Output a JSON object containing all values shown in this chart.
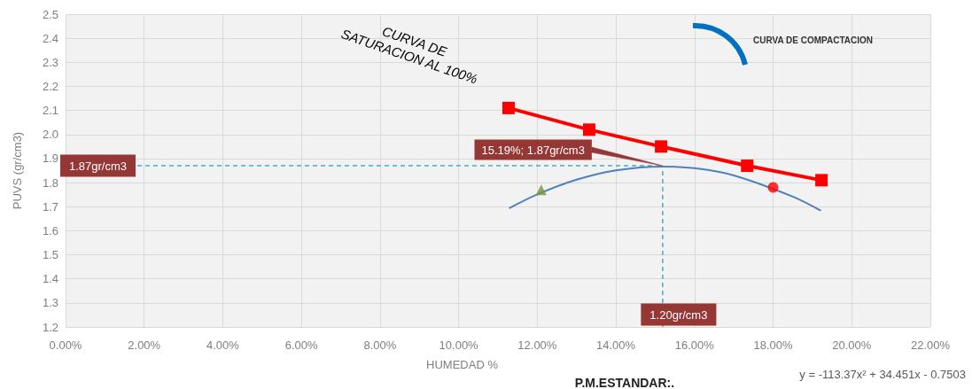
{
  "chart_data": {
    "type": "line",
    "xlabel": "HUMEDAD %",
    "ylabel": "PUVS (gr/cm3)",
    "xlim": [
      0,
      0.22
    ],
    "xticks": [
      {
        "value": 0,
        "label": "0.00%"
      },
      {
        "value": 0.02,
        "label": "2.00%"
      },
      {
        "value": 0.04,
        "label": "4.00%"
      },
      {
        "value": 0.06,
        "label": "6.00%"
      },
      {
        "value": 0.08,
        "label": "8.00%"
      },
      {
        "value": 0.1,
        "label": "10.00%"
      },
      {
        "value": 0.12,
        "label": "12.00%"
      },
      {
        "value": 0.14,
        "label": "14.00%"
      },
      {
        "value": 0.16,
        "label": "16.00%"
      },
      {
        "value": 0.18,
        "label": "18.00%"
      },
      {
        "value": 0.2,
        "label": "20.00%"
      },
      {
        "value": 0.22,
        "label": "22.00%"
      }
    ],
    "ylim": [
      1.2,
      2.5
    ],
    "yticks": [
      1.2,
      1.3,
      1.4,
      1.5,
      1.6,
      1.7,
      1.8,
      1.9,
      {
        "value": 2,
        "label": "2.0"
      },
      2.1,
      2.2,
      2.3,
      2.4,
      2.5
    ],
    "grid": true,
    "series": [
      {
        "color": "#ff0000",
        "marker": "square",
        "x": [
          0.1127,
          0.1332,
          0.1515,
          0.1734,
          0.1923
        ],
        "values": [
          2.11,
          2.02,
          1.95,
          1.87,
          1.81
        ]
      },
      {
        "color": "#4f81bd",
        "marker": "none",
        "x": [
          0.113,
          0.12,
          0.13,
          0.14,
          0.1519,
          0.16,
          0.17,
          0.185,
          0.192
        ],
        "values": [
          1.695,
          1.751,
          1.812,
          1.851,
          1.867,
          1.86,
          1.83,
          1.742,
          1.685
        ]
      },
      {
        "type": "scatter",
        "color": "#77933c",
        "marker": "triangle",
        "x": [
          0.121
        ],
        "values": [
          1.77
        ]
      },
      {
        "type": "scatter",
        "color": "#ff0000",
        "marker": "circle",
        "x": [
          0.18
        ],
        "values": [
          1.78
        ]
      }
    ],
    "ref_lines": [
      {
        "axis": "y",
        "value": 1.87,
        "label": "1.87gr/cm3",
        "color": "#4bacc6",
        "line_style": "dashed"
      },
      {
        "axis": "x",
        "value": 0.1519,
        "label": "1.20gr/cm3",
        "color": "#4bacc6",
        "line_style": "dashed"
      }
    ],
    "annotations": [
      "CURVA DE\nSATURACION AL 100%",
      "CURVA DE COMPACTACION",
      {
        "text": "15.19%; 1.87gr/cm3",
        "x": 0.1519,
        "y": 1.87
      },
      "P.M.ESTANDAR:.",
      "y = -113.37x² + 34.451x - 0.7503"
    ]
  }
}
